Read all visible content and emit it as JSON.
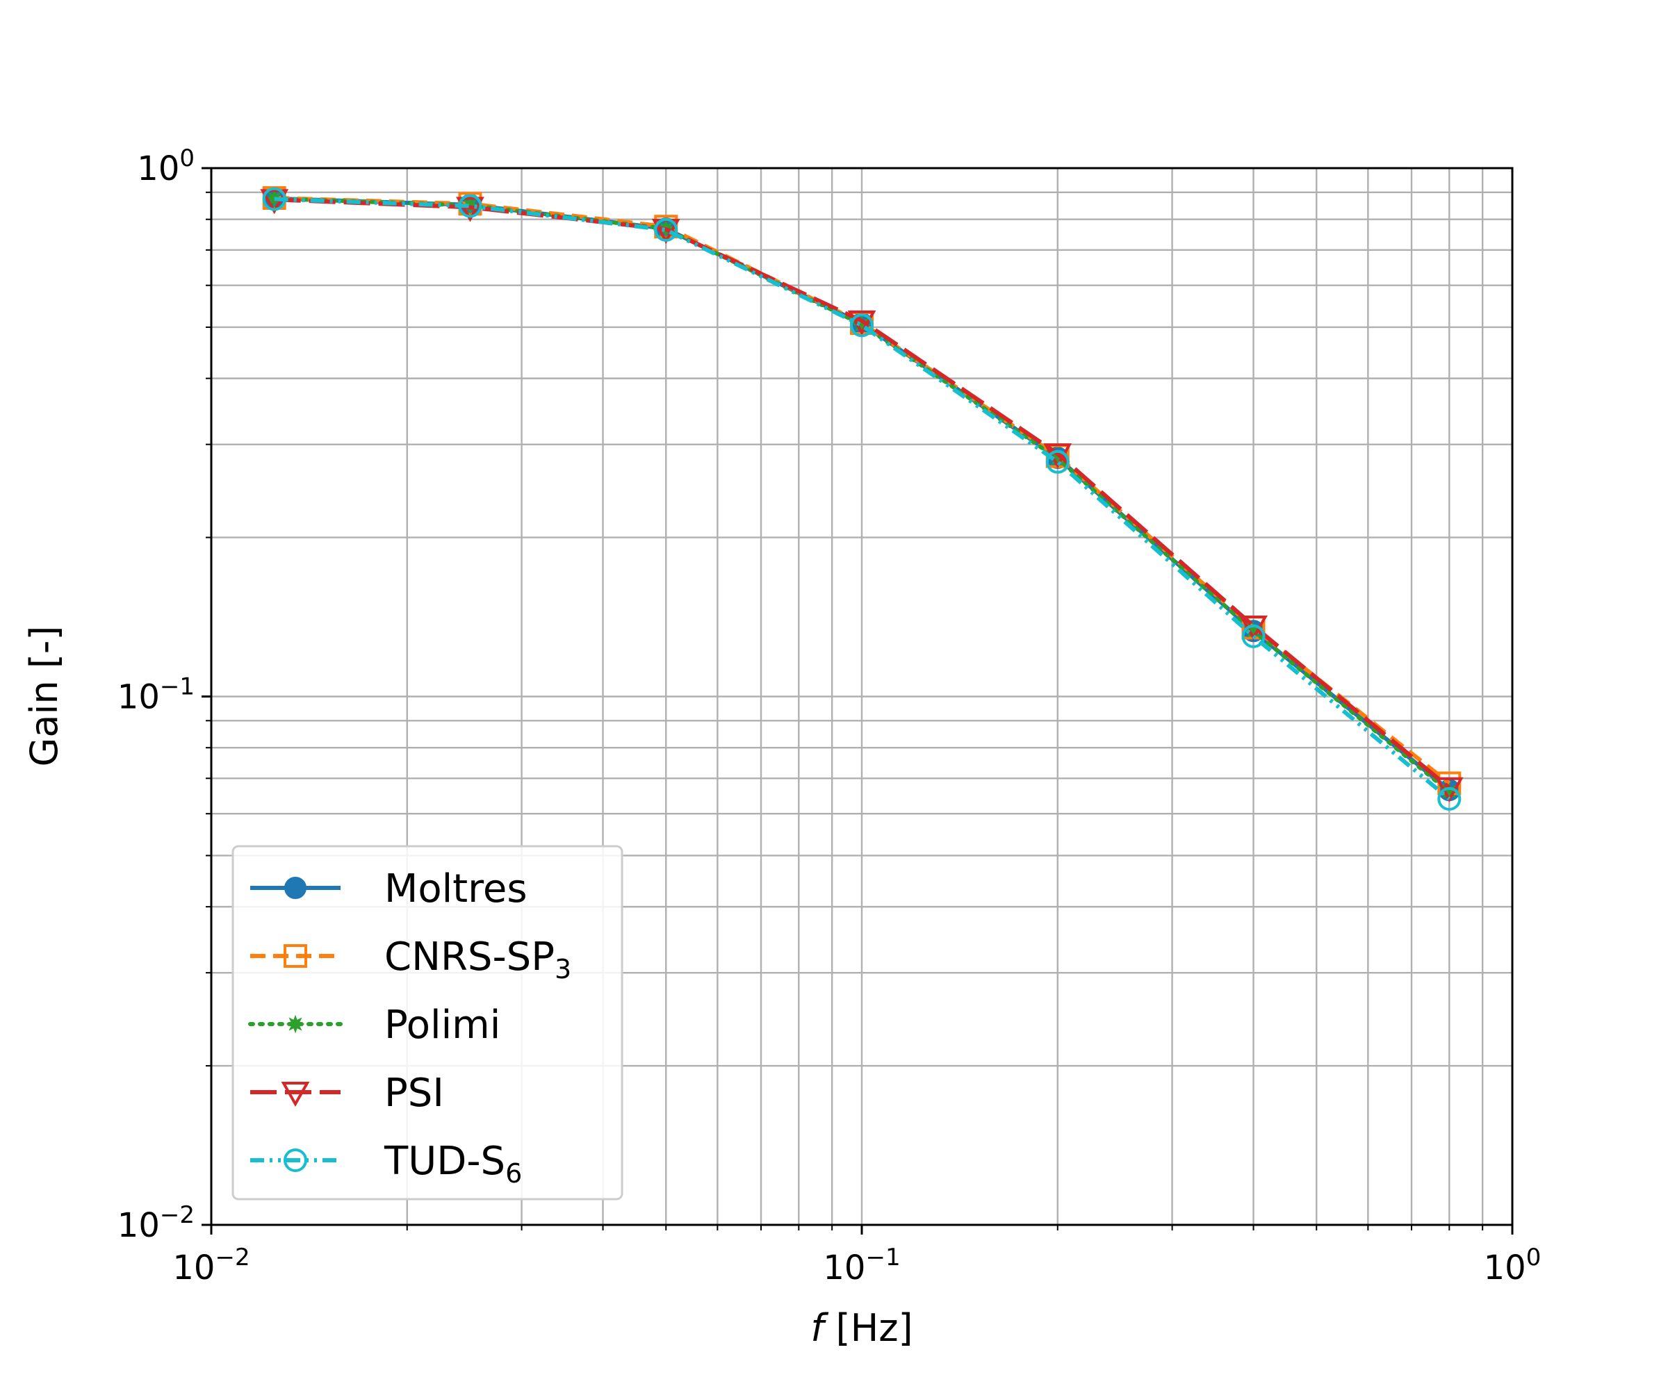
{
  "chart_data": {
    "type": "line",
    "xlabel_var": "f",
    "xlabel_unit": " [Hz]",
    "ylabel": "Gain [-]",
    "x_scale": "log",
    "y_scale": "log",
    "xlim": [
      0.01,
      1
    ],
    "ylim": [
      0.01,
      1
    ],
    "grid": true,
    "legend_position": "lower-left",
    "x_ticks": [
      {
        "value": 0.01,
        "base": "10",
        "exp": "−2"
      },
      {
        "value": 0.1,
        "base": "10",
        "exp": "−1"
      },
      {
        "value": 1,
        "base": "10",
        "exp": "0"
      }
    ],
    "y_ticks": [
      {
        "value": 0.01,
        "base": "10",
        "exp": "−2"
      },
      {
        "value": 0.1,
        "base": "10",
        "exp": "−1"
      },
      {
        "value": 1,
        "base": "10",
        "exp": "0"
      }
    ],
    "x": [
      0.0125,
      0.025,
      0.05,
      0.1,
      0.2,
      0.4,
      0.8
    ],
    "series": [
      {
        "name": "Moltres",
        "sub": "",
        "color": "#1f77b4",
        "dash": "",
        "marker": "filled-circle",
        "values": [
          0.876,
          0.852,
          0.768,
          0.508,
          0.283,
          0.133,
          0.0665
        ]
      },
      {
        "name": "CNRS-SP",
        "sub": "3",
        "color": "#ff7f0e",
        "dash": "22,11",
        "marker": "open-square",
        "values": [
          0.878,
          0.856,
          0.775,
          0.509,
          0.285,
          0.135,
          0.0685
        ]
      },
      {
        "name": "Polimi",
        "sub": "",
        "color": "#2ca02c",
        "dash": "4,10",
        "marker": "star",
        "values": [
          0.876,
          0.85,
          0.768,
          0.506,
          0.282,
          0.133,
          0.066
        ]
      },
      {
        "name": "PSI",
        "sub": "",
        "color": "#d62728",
        "dash": "38,12",
        "marker": "open-triangle-down",
        "values": [
          0.872,
          0.843,
          0.766,
          0.514,
          0.288,
          0.136,
          0.0672
        ]
      },
      {
        "name": "TUD-S",
        "sub": "6",
        "color": "#17becf",
        "dash": "20,8,4,8,4,8",
        "marker": "open-circle",
        "values": [
          0.874,
          0.848,
          0.764,
          0.504,
          0.278,
          0.13,
          0.064
        ]
      }
    ]
  }
}
